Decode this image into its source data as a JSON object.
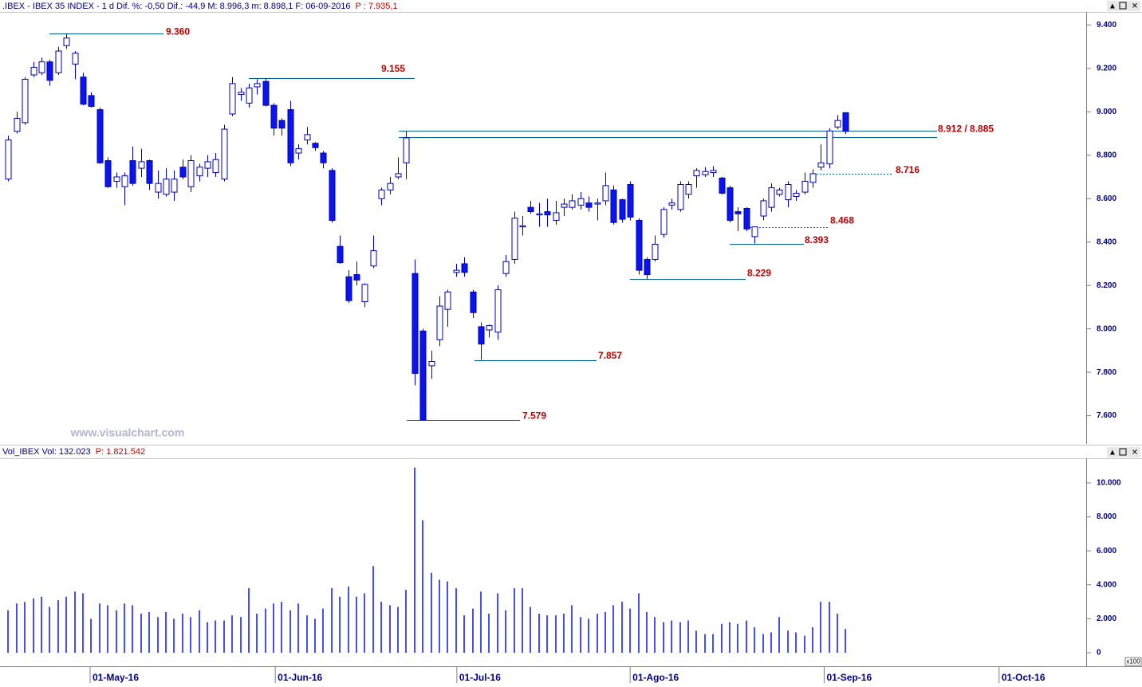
{
  "chart_data": [
    {
      "type": "candlestick",
      "title": ".IBEX - IBEX 35 INDEX -  1 d Dif. %: -0,50  Dif.: -44,9  M: 8.996,3  m: 8.898,1  F: 06-09-2016",
      "subtitle": "P : 7.935,1",
      "watermark": "www.visualchart.com",
      "up_color": "#ffffff",
      "down_color": "#0a14f0",
      "edge_color": "#0000b4",
      "xlim": [
        -1,
        130
      ],
      "xticks": [
        {
          "value": 9.87,
          "label": "01-May-16"
        },
        {
          "value": 32.2,
          "label": "01-Jun-16"
        },
        {
          "value": 54.1,
          "label": "01-Jul-16"
        },
        {
          "value": 75.0,
          "label": "01-Ago-16"
        },
        {
          "value": 98.4,
          "label": "01-Sep-16"
        },
        {
          "value": 119.5,
          "label": "01-Oct-16"
        }
      ],
      "ylim": [
        7470,
        9460
      ],
      "yticks": [
        {
          "value": 9400,
          "label": "9.400"
        },
        {
          "value": 9200,
          "label": "9.200"
        },
        {
          "value": 9000,
          "label": "9.000"
        },
        {
          "value": 8800,
          "label": "8.800"
        },
        {
          "value": 8600,
          "label": "8.600"
        },
        {
          "value": 8400,
          "label": "8.400"
        },
        {
          "value": 8200,
          "label": "8.200"
        },
        {
          "value": 8000,
          "label": "8.000"
        },
        {
          "value": 7800,
          "label": "7.800"
        },
        {
          "value": 7600,
          "label": "7.600"
        }
      ],
      "x": [
        0,
        1,
        2,
        3,
        4,
        5,
        6,
        7,
        8,
        9,
        10,
        11,
        12,
        13,
        14,
        15,
        16,
        17,
        18,
        19,
        20,
        21,
        22,
        23,
        24,
        25,
        26,
        27,
        28,
        29,
        30,
        31,
        32,
        33,
        34,
        35,
        36,
        37,
        38,
        39,
        40,
        41,
        42,
        43,
        44,
        45,
        46,
        47,
        48,
        49,
        50,
        51,
        52,
        53,
        54,
        55,
        56,
        57,
        58,
        59,
        60,
        61,
        62,
        63,
        64,
        65,
        66,
        67,
        68,
        69,
        70,
        71,
        72,
        73,
        74,
        75,
        76,
        77,
        78,
        79,
        80,
        81,
        82,
        83,
        84,
        85,
        86,
        87,
        88,
        89,
        90,
        91,
        92,
        93,
        94,
        95,
        96,
        97,
        98,
        99,
        100,
        101
      ],
      "open": [
        8690,
        8910,
        8950,
        9170,
        9180,
        9230,
        9180,
        9305,
        9220,
        9160,
        9075,
        9010,
        8775,
        8680,
        8655,
        8775,
        8740,
        8775,
        8630,
        8620,
        8630,
        8745,
        8655,
        8705,
        8740,
        8720,
        8690,
        8990,
        9080,
        9040,
        9115,
        9140,
        9030,
        8960,
        9010,
        8810,
        8870,
        8855,
        8810,
        8730,
        8380,
        8240,
        8250,
        8125,
        8290,
        8600,
        8640,
        8700,
        8765,
        8255,
        7990,
        7830,
        7950,
        8090,
        8260,
        8300,
        8170,
        8010,
        7995,
        7985,
        8255,
        8320,
        8470,
        8560,
        8525,
        8540,
        8500,
        8560,
        8560,
        8570,
        8580,
        8575,
        8590,
        8640,
        8595,
        8665,
        8500,
        8320,
        8320,
        8435,
        8570,
        8550,
        8620,
        8705,
        8710,
        8720,
        8695,
        8650,
        8540,
        8555,
        8425,
        8520,
        8560,
        8620,
        8595,
        8610,
        8630,
        8675,
        8745,
        8760,
        8930,
        8996
      ],
      "high": [
        8890,
        9000,
        9160,
        9230,
        9250,
        9240,
        9300,
        9360,
        9280,
        9180,
        9090,
        9020,
        8790,
        8720,
        8720,
        8840,
        8830,
        8780,
        8730,
        8740,
        8730,
        8780,
        8800,
        8760,
        8800,
        8810,
        8940,
        9160,
        9110,
        9130,
        9150,
        9155,
        9040,
        8970,
        9050,
        8850,
        8930,
        8860,
        8820,
        8740,
        8430,
        8270,
        8310,
        8210,
        8430,
        8650,
        8700,
        8790,
        8910,
        8320,
        8000,
        7900,
        8150,
        8180,
        8300,
        8330,
        8180,
        8030,
        8020,
        8200,
        8340,
        8540,
        8520,
        8590,
        8580,
        8600,
        8590,
        8600,
        8620,
        8630,
        8610,
        8600,
        8720,
        8660,
        8600,
        8680,
        8510,
        8330,
        8430,
        8560,
        8600,
        8680,
        8680,
        8740,
        8745,
        8750,
        8700,
        8660,
        8560,
        8560,
        8470,
        8600,
        8670,
        8650,
        8680,
        8640,
        8720,
        8735,
        8850,
        8925,
        8985,
        8996
      ],
      "low": [
        8680,
        8900,
        8940,
        9160,
        9170,
        9120,
        9170,
        9290,
        9150,
        9030,
        9020,
        8760,
        8650,
        8650,
        8570,
        8660,
        8700,
        8640,
        8600,
        8610,
        8590,
        8690,
        8630,
        8680,
        8700,
        8700,
        8680,
        8980,
        9050,
        9020,
        9080,
        9025,
        8890,
        8890,
        8750,
        8780,
        8850,
        8820,
        8740,
        8490,
        8300,
        8120,
        8200,
        8100,
        8280,
        8570,
        8620,
        8690,
        8690,
        7740,
        7579,
        7770,
        7920,
        8010,
        8240,
        8240,
        8050,
        7857,
        7960,
        7950,
        8240,
        8300,
        8430,
        8530,
        8470,
        8470,
        8480,
        8520,
        8550,
        8550,
        8540,
        8500,
        8570,
        8480,
        8490,
        8500,
        8250,
        8229,
        8310,
        8420,
        8550,
        8540,
        8600,
        8650,
        8700,
        8700,
        8620,
        8490,
        8450,
        8450,
        8393,
        8500,
        8540,
        8610,
        8560,
        8590,
        8620,
        8650,
        8730,
        8740,
        8920,
        8898
      ],
      "close": [
        8870,
        8970,
        9150,
        9205,
        9230,
        9145,
        9280,
        9340,
        9270,
        9035,
        9025,
        8765,
        8655,
        8700,
        8705,
        8670,
        8770,
        8670,
        8670,
        8690,
        8690,
        8700,
        8775,
        8745,
        8770,
        8780,
        8920,
        9130,
        9090,
        9110,
        9130,
        9030,
        8925,
        8925,
        8765,
        8830,
        8895,
        8835,
        8765,
        8500,
        8305,
        8130,
        8225,
        8205,
        8360,
        8640,
        8670,
        8715,
        8880,
        7795,
        7580,
        7850,
        8105,
        8170,
        8270,
        8260,
        8075,
        7930,
        8015,
        8180,
        8310,
        8510,
        8475,
        8540,
        8530,
        8525,
        8535,
        8575,
        8590,
        8600,
        8560,
        8580,
        8660,
        8490,
        8505,
        8515,
        8270,
        8250,
        8390,
        8550,
        8580,
        8665,
        8665,
        8730,
        8725,
        8730,
        8625,
        8500,
        8530,
        8460,
        8470,
        8590,
        8650,
        8640,
        8665,
        8625,
        8680,
        8715,
        8765,
        8912,
        8960,
        8910
      ],
      "annotations": [
        {
          "values": [
            9360
          ],
          "label": "9.360",
          "style": "solid"
        },
        {
          "values": [
            9155
          ],
          "label": "9.155",
          "style": "solid"
        },
        {
          "values": [
            8912,
            8885
          ],
          "label": "8.912 / 8.885",
          "style": "solid"
        },
        {
          "values": [
            8716
          ],
          "label": "8.716",
          "style": "dashed"
        },
        {
          "values": [
            8468
          ],
          "label": "8.468",
          "style": "dashed"
        },
        {
          "values": [
            8393
          ],
          "label": "8.393",
          "style": "solid"
        },
        {
          "values": [
            8229
          ],
          "label": "8.229",
          "style": "solid"
        },
        {
          "values": [
            7857
          ],
          "label": "7.857",
          "style": "solid"
        },
        {
          "values": [
            7579
          ],
          "label": "7.579",
          "style": "solid"
        }
      ]
    },
    {
      "type": "volume",
      "title": "Vol_IBEX Vol: 132.023",
      "subtitle": "P: 1.821.542",
      "ylabel": "x100",
      "color": "#0a14f0",
      "ylim": [
        -750,
        11450
      ],
      "yticks": [
        {
          "value": 10000,
          "label": "10.000"
        },
        {
          "value": 8000,
          "label": "8.000"
        },
        {
          "value": 6000,
          "label": "6.000"
        },
        {
          "value": 4000,
          "label": "4.000"
        },
        {
          "value": 2000,
          "label": "2.000"
        },
        0
      ],
      "values": [
        2500,
        2900,
        3000,
        3200,
        3300,
        2700,
        3100,
        3300,
        3600,
        3500,
        2000,
        2900,
        2800,
        2500,
        2900,
        2800,
        2300,
        2400,
        2100,
        2400,
        2000,
        2300,
        2100,
        2500,
        1800,
        1900,
        1900,
        2200,
        2100,
        3800,
        2300,
        2600,
        2900,
        3000,
        2500,
        2900,
        2200,
        2000,
        2600,
        3800,
        3300,
        3900,
        3300,
        3500,
        5100,
        3000,
        2800,
        2700,
        3700,
        10900,
        7800,
        4700,
        4300,
        4200,
        3800,
        2200,
        2600,
        3600,
        2300,
        3500,
        2500,
        3800,
        3800,
        2700,
        2300,
        2200,
        2200,
        2300,
        2800,
        2100,
        2000,
        2300,
        2400,
        2800,
        3000,
        2600,
        3500,
        2400,
        2100,
        1800,
        1900,
        1800,
        1900,
        1300,
        1100,
        1100,
        1700,
        1800,
        1700,
        1900,
        1500,
        1100,
        1200,
        2100,
        1300,
        1200,
        1000,
        1500,
        3000,
        3000,
        2300,
        1400
      ]
    }
  ]
}
